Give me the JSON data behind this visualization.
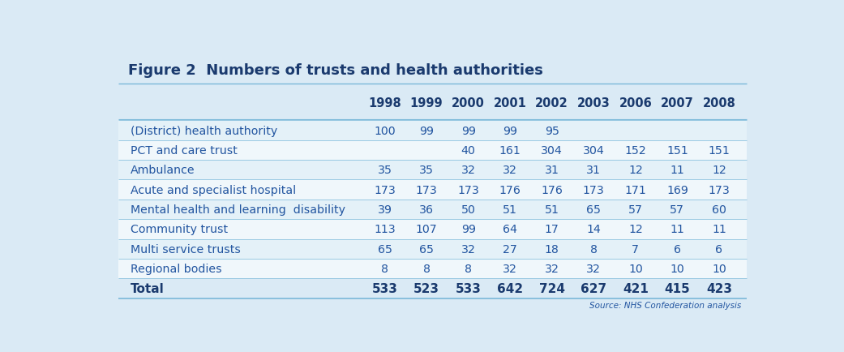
{
  "title": "Figure 2  Numbers of trusts and health authorities",
  "source": "Source: NHS Confederation analysis",
  "columns": [
    "",
    "1998",
    "1999",
    "2000",
    "2001",
    "2002",
    "2003",
    "2006",
    "2007",
    "2008"
  ],
  "rows": [
    {
      "label": "(District) health authority",
      "values": [
        "100",
        "99",
        "99",
        "99",
        "95",
        "",
        "",
        "",
        ""
      ],
      "bold": false
    },
    {
      "label": "PCT and care trust",
      "values": [
        "",
        "",
        "40",
        "161",
        "304",
        "304",
        "152",
        "151",
        "151"
      ],
      "bold": false
    },
    {
      "label": "Ambulance",
      "values": [
        "35",
        "35",
        "32",
        "32",
        "31",
        "31",
        "12",
        "11",
        "12"
      ],
      "bold": false
    },
    {
      "label": "Acute and specialist hospital",
      "values": [
        "173",
        "173",
        "173",
        "176",
        "176",
        "173",
        "171",
        "169",
        "173"
      ],
      "bold": false
    },
    {
      "label": "Mental health and learning  disability",
      "values": [
        "39",
        "36",
        "50",
        "51",
        "51",
        "65",
        "57",
        "57",
        "60"
      ],
      "bold": false
    },
    {
      "label": "Community trust",
      "values": [
        "113",
        "107",
        "99",
        "64",
        "17",
        "14",
        "12",
        "11",
        "11"
      ],
      "bold": false
    },
    {
      "label": "Multi service trusts",
      "values": [
        "65",
        "65",
        "32",
        "27",
        "18",
        "8",
        "7",
        "6",
        "6"
      ],
      "bold": false
    },
    {
      "label": "Regional bodies",
      "values": [
        "8",
        "8",
        "8",
        "32",
        "32",
        "32",
        "10",
        "10",
        "10"
      ],
      "bold": false
    },
    {
      "label": "Total",
      "values": [
        "533",
        "523",
        "533",
        "642",
        "724",
        "627",
        "421",
        "415",
        "423"
      ],
      "bold": true
    }
  ],
  "bg_color": "#daeaf5",
  "row_bg_even": "#e4f1f8",
  "row_bg_odd": "#f0f7fb",
  "title_color": "#1a3a6e",
  "header_text_color": "#1a3a6e",
  "cell_text_color": "#2255a0",
  "total_text_color": "#1a3a6e",
  "border_color": "#7ab8d9",
  "outer_bg": "#daeaf5"
}
